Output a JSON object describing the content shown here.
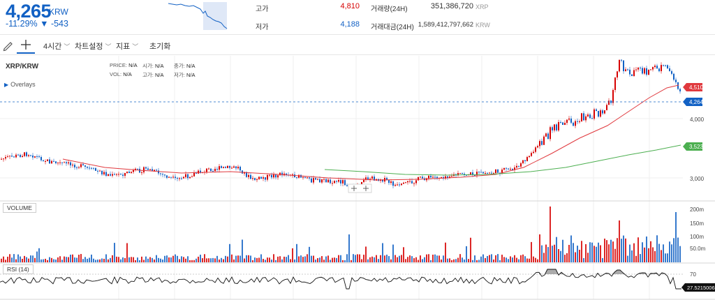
{
  "ticker": {
    "price": "4,265",
    "unit": "KRW",
    "change": "-11.29% ▼ -543"
  },
  "stats": {
    "high_label": "고가",
    "high_value": "4,810",
    "low_label": "저가",
    "low_value": "4,188",
    "volume_label": "거래량(24H)",
    "volume_value": "351,386,720",
    "volume_unit": "XRP",
    "amount_label": "거래대금(24H)",
    "amount_value": "1,589,412,797,662",
    "amount_unit": "KRW"
  },
  "toolbar": {
    "interval": "4시간",
    "chart_settings": "차트설정",
    "indicators": "지표",
    "reset": "초기화"
  },
  "chart": {
    "symbol": "XRP/KRW",
    "overlays_label": "Overlays",
    "ohlc": {
      "price_label": "PRICE:",
      "price_value": "N/A",
      "open_label": "시가:",
      "open_value": "N/A",
      "close_label": "종가:",
      "close_value": "N/A",
      "vol_label": "VOL:",
      "vol_value": "N/A",
      "high_label": "고가:",
      "high_value": "N/A",
      "low_label": "저가:",
      "low_value": "N/A"
    },
    "price_axis": {
      "ticks": [
        "4,000",
        "3,000"
      ]
    },
    "price_badges": {
      "ma_red": "4,510",
      "current": "4,264",
      "ma_green": "3,523"
    },
    "volume_panel": {
      "label": "VOLUME",
      "ticks": [
        "200m",
        "150m",
        "100m",
        "50.0m"
      ]
    },
    "rsi_panel": {
      "label": "RSI (14)",
      "level": "70",
      "value": "27.5215006"
    },
    "colors": {
      "up": "#d60000",
      "down": "#1261c4",
      "ma_red": "#e0393e",
      "ma_green": "#4caf50",
      "accent": "#1261c4"
    }
  }
}
